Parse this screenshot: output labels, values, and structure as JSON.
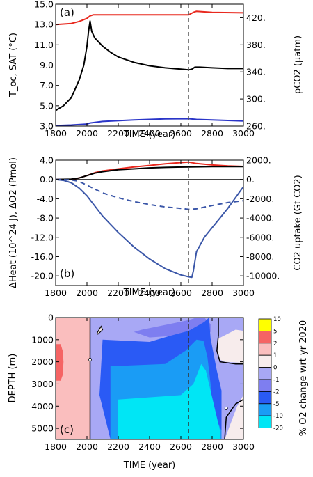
{
  "chart_data": [
    {
      "type": "line",
      "panel_label": "(a)",
      "xlabel": "TIME (year)",
      "ylabel_left": "T_oc, SAT (°C)",
      "ylabel_right": "pCO2 (µatm)",
      "xlim": [
        1800,
        3000
      ],
      "ylim_left": [
        3.0,
        15.0
      ],
      "ylim_right": [
        260,
        440
      ],
      "x_ticks": [
        "1800",
        "2000",
        "2200",
        "2400",
        "2600",
        "2800",
        "3000"
      ],
      "y_ticks_left": [
        "15.0",
        "13.0",
        "11.0",
        "9.0",
        "7.0",
        "5.0",
        "3.0"
      ],
      "y_ticks_right": [
        "420.",
        "380.",
        "340.",
        "300.",
        "260."
      ],
      "vlines": [
        2020,
        2650
      ],
      "series": [
        {
          "axis": "left",
          "color": "#e8281e",
          "x": [
            1800,
            1900,
            1950,
            2000,
            2020,
            2040,
            2100,
            2300,
            2500,
            2650,
            2680,
            2700,
            2800,
            3000
          ],
          "y": [
            13.0,
            13.1,
            13.3,
            13.6,
            13.85,
            13.95,
            13.95,
            13.95,
            13.95,
            13.95,
            14.2,
            14.3,
            14.2,
            14.15
          ]
        },
        {
          "axis": "right",
          "color": "#000000",
          "x": [
            1800,
            1850,
            1900,
            1950,
            1980,
            2000,
            2010,
            2020,
            2025,
            2030,
            2050,
            2100,
            2150,
            2200,
            2300,
            2400,
            2500,
            2600,
            2650,
            2670,
            2690,
            2720,
            2800,
            2900,
            3000
          ],
          "y": [
            283,
            290,
            302,
            328,
            350,
            378,
            400,
            415,
            408,
            400,
            390,
            378,
            369,
            362,
            354,
            349,
            346,
            344,
            343,
            344,
            347,
            347,
            346,
            345,
            345
          ]
        },
        {
          "axis": "left",
          "color": "#2a35c8",
          "x": [
            1800,
            1900,
            2000,
            2020,
            2100,
            2300,
            2500,
            2650,
            2700,
            2800,
            3000
          ],
          "y": [
            3.05,
            3.1,
            3.2,
            3.3,
            3.45,
            3.6,
            3.7,
            3.72,
            3.65,
            3.6,
            3.5
          ]
        }
      ]
    },
    {
      "type": "line",
      "panel_label": "(b)",
      "xlabel": "TIME (year)",
      "ylabel_left": "ΔHeat (10^24 J), ΔO2 (Pmol)",
      "ylabel_right": "CO2 uptake (Gt CO2)",
      "xlim": [
        1800,
        3000
      ],
      "ylim_left": [
        -22.0,
        4.0
      ],
      "ylim_right": [
        -11000,
        2000
      ],
      "x_ticks": [
        "1800",
        "2000",
        "2200",
        "2400",
        "2600",
        "2800",
        "3000"
      ],
      "y_ticks_left": [
        "4.0",
        "0.0",
        "-4.0",
        "-8.0",
        "-12.0",
        "-16.0",
        "-20.0"
      ],
      "y_ticks_right": [
        "2000.",
        "0.",
        "-2000.",
        "-4000.",
        "-6000.",
        "-8000.",
        "-10000."
      ],
      "vlines": [
        2020,
        2650
      ],
      "series": [
        {
          "axis": "right",
          "color": "#e8281e",
          "x": [
            1800,
            1900,
            1950,
            2000,
            2050,
            2100,
            2200,
            2300,
            2400,
            2500,
            2600,
            2650,
            2700,
            2800,
            2900,
            3000
          ],
          "y": [
            0,
            20,
            150,
            400,
            700,
            880,
            1100,
            1300,
            1450,
            1620,
            1750,
            1800,
            1650,
            1500,
            1400,
            1350
          ]
        },
        {
          "axis": "left",
          "color": "#000000",
          "x": [
            1800,
            1900,
            1950,
            2000,
            2050,
            2100,
            2200,
            2300,
            2400,
            2500,
            2650,
            2800,
            3000
          ],
          "y": [
            0,
            0.05,
            0.3,
            0.8,
            1.3,
            1.6,
            2.0,
            2.2,
            2.4,
            2.5,
            2.6,
            2.65,
            2.65
          ]
        },
        {
          "axis": "left",
          "color": "#3a56a8",
          "dash": true,
          "x": [
            1800,
            1900,
            1950,
            2000,
            2050,
            2100,
            2200,
            2300,
            2400,
            2500,
            2600,
            2650,
            2700,
            2800,
            2900,
            3000
          ],
          "y": [
            0,
            -0.1,
            -0.4,
            -1.2,
            -2.0,
            -2.8,
            -3.8,
            -4.6,
            -5.2,
            -5.7,
            -6.0,
            -6.2,
            -6.1,
            -5.4,
            -4.8,
            -4.4
          ]
        },
        {
          "axis": "left",
          "color": "#3a56a8",
          "x": [
            1800,
            1850,
            1900,
            1950,
            2000,
            2050,
            2100,
            2200,
            2300,
            2400,
            2500,
            2600,
            2650,
            2670,
            2680,
            2700,
            2750,
            2800,
            2850,
            2900,
            3000
          ],
          "y": [
            0,
            -0.2,
            -0.7,
            -1.8,
            -3.4,
            -5.5,
            -7.6,
            -11.0,
            -14.0,
            -16.5,
            -18.5,
            -19.8,
            -20.2,
            -20.3,
            -19.0,
            -15.0,
            -12.0,
            -10.0,
            -8.0,
            -6.0,
            -1.5
          ]
        }
      ]
    },
    {
      "type": "heatmap",
      "panel_label": "(c)",
      "xlabel": "TIME (year)",
      "ylabel": "DEPTH (m)",
      "xlim": [
        1800,
        3000
      ],
      "ylim": [
        0,
        5500
      ],
      "x_ticks": [
        "1800",
        "2000",
        "2200",
        "2400",
        "2600",
        "2800",
        "3000"
      ],
      "y_ticks": [
        "0",
        "1000",
        "2000",
        "3000",
        "4000",
        "5000"
      ],
      "vlines": [
        2650
      ],
      "zero_line_x": 2020,
      "colorbar": {
        "label": "% O2 change wrt yr 2020",
        "levels": [
          "10",
          "5",
          "2",
          "1",
          "0",
          "-1",
          "-2",
          "-5",
          "-10",
          "-20"
        ],
        "colors": [
          "#ffff00",
          "#f56464",
          "#fabebe",
          "#f7ecec",
          "#a8a8f5",
          "#7e7ef0",
          "#2a5af5",
          "#1a9cf5",
          "#00e6f5"
        ]
      },
      "regions": [
        {
          "band": "2 to 5",
          "color": "#f56464",
          "x": [
            1800,
            1832,
            1845,
            1850,
            1845,
            1832,
            1800
          ],
          "depth": [
            1200,
            1200,
            1500,
            2000,
            2600,
            2850,
            2850
          ]
        },
        {
          "band": "2 to 5",
          "color": "#f56464",
          "x": [
            2920,
            2940,
            2960,
            3000,
            3000,
            2960,
            2935,
            2920
          ],
          "depth": [
            5500,
            4900,
            4450,
            4200,
            5500,
            5500,
            5500,
            5500
          ]
        },
        {
          "band": "1 to 2",
          "color": "#fabebe",
          "x": [
            1800,
            2020,
            2020,
            1800
          ],
          "depth": [
            0,
            0,
            5500,
            5500
          ]
        },
        {
          "band": "1 to 2",
          "color": "#fabebe",
          "x": [
            2855,
            2920,
            3000,
            3000,
            2920,
            2850
          ],
          "depth": [
            1250,
            950,
            1000,
            1800,
            1750,
            1600
          ]
        },
        {
          "band": "1 to 2",
          "color": "#fabebe",
          "x": [
            2900,
            2950,
            3000,
            3000
          ],
          "depth": [
            5500,
            4500,
            3850,
            5500
          ]
        },
        {
          "band": "0 to 1",
          "color": "#f7ecec",
          "x": [
            2840,
            2950,
            3000,
            3000,
            2880,
            2850,
            2840
          ],
          "depth": [
            950,
            550,
            600,
            2050,
            2000,
            1900,
            1600
          ]
        },
        {
          "band": "0 to 1",
          "color": "#f7ecec",
          "x": [
            2065,
            2090,
            2100,
            2070
          ],
          "depth": [
            700,
            400,
            550,
            750
          ]
        },
        {
          "band": "0 to 1",
          "color": "#f7ecec",
          "x": [
            2880,
            2960,
            3000,
            3000,
            2885
          ],
          "depth": [
            5500,
            4000,
            3500,
            5500,
            5500
          ]
        },
        {
          "band": "-1 to 0",
          "color": "#a8a8f5",
          "x": [
            2020,
            3000,
            3000,
            2020
          ],
          "depth": [
            0,
            0,
            5500,
            5500
          ]
        },
        {
          "band": "-2 to -1",
          "color": "#7e7ef0",
          "x": [
            2350,
            2650,
            2700,
            2750,
            2790,
            2790,
            2700,
            2400,
            2300
          ],
          "depth": [
            550,
            120,
            0,
            0,
            300,
            650,
            750,
            900,
            650
          ]
        },
        {
          "band": "-5 to -2",
          "color": "#2a5af5",
          "x": [
            2100,
            2400,
            2520,
            2650,
            2750,
            2780,
            2790,
            2830,
            2860,
            2860,
            2810,
            2800,
            2700,
            2150,
            2080
          ],
          "depth": [
            1000,
            1100,
            850,
            600,
            200,
            0,
            950,
            2400,
            3300,
            5500,
            5500,
            4400,
            5500,
            5500,
            3500
          ]
        },
        {
          "band": "-10 to -5",
          "color": "#1a9cf5",
          "x": [
            2150,
            2500,
            2630,
            2700,
            2745,
            2770,
            2790,
            2800,
            2860,
            2860,
            2800,
            2700,
            2400,
            2150
          ],
          "depth": [
            2200,
            2100,
            1500,
            1000,
            1050,
            1800,
            3000,
            4200,
            5100,
            5500,
            5500,
            5500,
            5500,
            5500
          ]
        },
        {
          "band": "-20 to -10",
          "color": "#00e6f5",
          "x": [
            2200,
            2600,
            2680,
            2730,
            2760,
            2800,
            2840,
            2850,
            2850,
            2200
          ],
          "depth": [
            3700,
            3500,
            3000,
            2100,
            2400,
            3600,
            4800,
            5100,
            5500,
            5500
          ]
        }
      ]
    }
  ]
}
